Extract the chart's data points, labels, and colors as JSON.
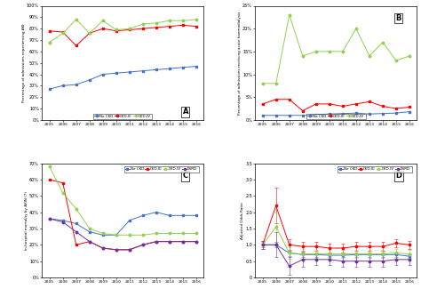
{
  "years": [
    2005,
    2006,
    2007,
    2008,
    2009,
    2010,
    2011,
    2012,
    2013,
    2014,
    2015,
    2016
  ],
  "panelA_title": "A",
  "panelA_ylabel": "Percentage of admissions experiencing AKI",
  "panelA_NoCKD": [
    27,
    30,
    31,
    35,
    40,
    41,
    42,
    43,
    44,
    45,
    46,
    47
  ],
  "panelA_CKDIII": [
    78,
    77,
    65,
    76,
    80,
    78,
    79,
    80,
    81,
    82,
    83,
    82
  ],
  "panelA_CKDIV": [
    68,
    76,
    88,
    76,
    87,
    79,
    80,
    84,
    85,
    87,
    87,
    88
  ],
  "panelB_title": "B",
  "panelB_ylabel": "Percentage of admissions receiving acute haemodialysis",
  "panelB_NoCKD": [
    1.0,
    1.0,
    1.0,
    1.0,
    1.2,
    1.3,
    1.4,
    1.5,
    1.3,
    1.4,
    1.5,
    1.8
  ],
  "panelB_CKDIII": [
    3.5,
    4.5,
    4.5,
    2.0,
    3.5,
    3.5,
    3.0,
    3.5,
    4.0,
    3.0,
    2.5,
    2.8
  ],
  "panelB_CKDIV": [
    8.0,
    8.0,
    23.0,
    14.0,
    15.0,
    15.0,
    15.0,
    20.0,
    14.0,
    17.0,
    13.0,
    14.0
  ],
  "panelC_title": "C",
  "panelC_ylabel": "In-hospital mortality by AKIN (7)",
  "panelC_NoCKD": [
    36,
    35,
    33,
    28,
    26,
    26,
    35,
    38,
    40,
    38,
    38,
    38
  ],
  "panelC_CKDIII": [
    60,
    58,
    20,
    22,
    18,
    17,
    17,
    20,
    22,
    22,
    22,
    22
  ],
  "panelC_CKDIV": [
    68,
    52,
    42,
    30,
    27,
    26,
    26,
    26,
    27,
    27,
    27,
    27
  ],
  "panelC_ESRD": [
    36,
    34,
    28,
    22,
    18,
    17,
    17,
    20,
    22,
    22,
    22,
    22
  ],
  "panelD_title": "D",
  "panelD_ylabel": "Adjusted Odds Ratio",
  "panelD_NoCKD": [
    1.0,
    1.0,
    0.75,
    0.7,
    0.7,
    0.68,
    0.68,
    0.7,
    0.7,
    0.7,
    0.7,
    0.65
  ],
  "panelD_CKDIII": [
    1.0,
    2.2,
    1.0,
    0.95,
    0.95,
    0.9,
    0.9,
    0.95,
    0.95,
    0.95,
    1.05,
    1.0
  ],
  "panelD_CKDIV": [
    1.0,
    1.55,
    0.75,
    0.72,
    0.72,
    0.72,
    0.72,
    0.72,
    0.72,
    0.72,
    0.75,
    0.72
  ],
  "panelD_ESRD": [
    1.0,
    1.0,
    0.35,
    0.55,
    0.55,
    0.55,
    0.5,
    0.5,
    0.5,
    0.5,
    0.55,
    0.55
  ],
  "panelD_NoCKD_err": [
    0.08,
    0.08,
    0.1,
    0.08,
    0.06,
    0.06,
    0.06,
    0.06,
    0.06,
    0.06,
    0.06,
    0.06
  ],
  "panelD_CKDIII_err": [
    0.12,
    0.55,
    0.18,
    0.14,
    0.13,
    0.13,
    0.13,
    0.13,
    0.13,
    0.13,
    0.13,
    0.13
  ],
  "panelD_CKDIV_err": [
    0.12,
    0.45,
    0.18,
    0.15,
    0.13,
    0.13,
    0.13,
    0.13,
    0.13,
    0.13,
    0.13,
    0.13
  ],
  "panelD_ESRD_err": [
    0.12,
    0.38,
    0.28,
    0.22,
    0.18,
    0.18,
    0.18,
    0.18,
    0.18,
    0.18,
    0.18,
    0.18
  ],
  "color_NoCKD": "#4472C4",
  "color_CKDIII": "#FF0000",
  "color_CKDIV": "#92D050",
  "color_ESRD": "#7030A0",
  "label_NoCKD": "No CKD",
  "label_CKDIII": "CKD-III",
  "label_CKDIV": "CKD-IV",
  "label_ESRD": "ESRD"
}
